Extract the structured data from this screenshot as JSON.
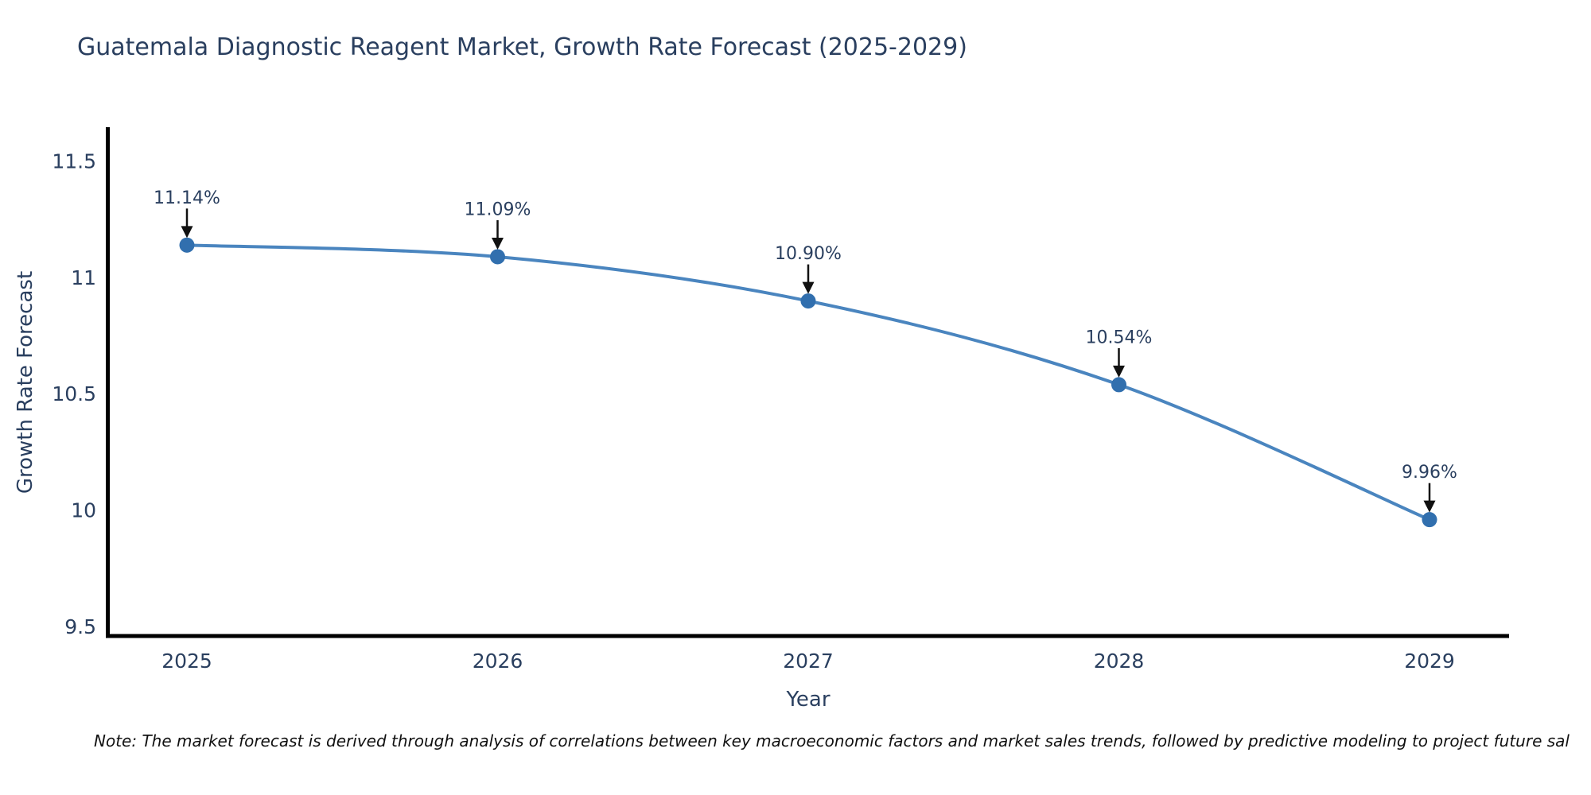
{
  "note": "Note: The market forecast is derived through analysis of correlations between key macroeconomic factors and market sales trends, followed by predictive modeling to project future sal",
  "chart_data": {
    "type": "line",
    "title": "Guatemala Diagnostic Reagent Market, Growth Rate Forecast (2025-2029)",
    "xlabel": "Year",
    "ylabel": "Growth Rate Forecast",
    "categories": [
      "2025",
      "2026",
      "2027",
      "2028",
      "2029"
    ],
    "values": [
      11.14,
      11.09,
      10.9,
      10.54,
      9.96
    ],
    "point_labels": [
      "11.14%",
      "11.09%",
      "10.90%",
      "10.54%",
      "9.96%"
    ],
    "ytick_values": [
      9.5,
      10,
      10.5,
      11,
      11.5
    ],
    "ytick_labels": [
      "9.5",
      "10",
      "10.5",
      "11",
      "11.5"
    ],
    "ylim": [
      9.46,
      11.64
    ],
    "grid": false,
    "legend": "none",
    "colors": {
      "line": "#4a85bf",
      "marker": "#316fae",
      "text": "#2a3f5f",
      "axis": "#000000",
      "arrow": "#111111"
    }
  }
}
